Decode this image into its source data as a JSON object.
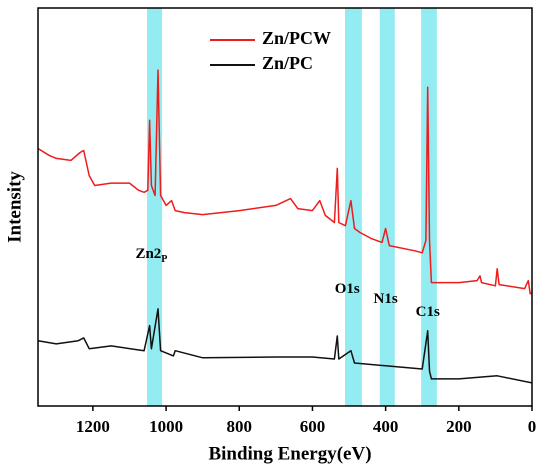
{
  "chart_data": {
    "type": "line",
    "x_label": "Binding Energy(eV)",
    "y_label": "Intensity",
    "xlim": [
      1350,
      0
    ],
    "xticks": [
      1200,
      1000,
      800,
      600,
      400,
      200,
      0
    ],
    "ylim": [
      0,
      100
    ],
    "legend": "upper center",
    "highlight_color": "#7fe9f0",
    "highlights": [
      [
        1052,
        1011
      ],
      [
        511,
        465
      ],
      [
        416,
        375
      ],
      [
        303,
        260
      ]
    ],
    "annotations": [
      {
        "text": "Zn2",
        "sub": "P",
        "x": 1040
      },
      {
        "text": "O1s",
        "x": 505
      },
      {
        "text": "N1s",
        "x": 400
      },
      {
        "text": "C1s",
        "x": 285
      }
    ],
    "series": [
      {
        "name": "Zn/PCW",
        "color": "#ee1c1c",
        "x": [
          1350,
          1320,
          1300,
          1260,
          1235,
          1225,
          1210,
          1195,
          1150,
          1100,
          1075,
          1060,
          1050,
          1045,
          1040,
          1030,
          1022,
          1015,
          1000,
          985,
          975,
          950,
          900,
          800,
          700,
          660,
          640,
          600,
          580,
          565,
          540,
          532,
          528,
          510,
          495,
          485,
          470,
          440,
          410,
          400,
          390,
          320,
          300,
          290,
          285,
          280,
          275,
          250,
          200,
          150,
          142,
          138,
          100,
          95,
          90,
          20,
          10,
          5,
          0
        ],
        "values": [
          64.7,
          63,
          62.2,
          61.7,
          63.7,
          64.2,
          57.9,
          55.4,
          56,
          56,
          54.2,
          53.7,
          54.2,
          71.8,
          55.4,
          52.9,
          84.4,
          52.9,
          50.4,
          51.6,
          49.1,
          48.6,
          48.1,
          49.1,
          50.4,
          52.1,
          49.6,
          49.1,
          51.6,
          47.9,
          46.1,
          59.7,
          46.1,
          45.3,
          51.6,
          44.6,
          43.6,
          42.1,
          41.1,
          44.6,
          40.3,
          39,
          38.5,
          41.6,
          80.1,
          41.6,
          31,
          31,
          31,
          31.5,
          32.7,
          31,
          30.2,
          34.5,
          30.5,
          29.5,
          31.5,
          28.2,
          28.5
        ]
      },
      {
        "name": "Zn/PC",
        "color": "#111111",
        "x": [
          1350,
          1300,
          1240,
          1225,
          1210,
          1150,
          1060,
          1045,
          1040,
          1022,
          1015,
          980,
          975,
          900,
          700,
          600,
          540,
          532,
          528,
          495,
          485,
          400,
          300,
          285,
          280,
          275,
          200,
          95,
          0
        ],
        "values": [
          16.4,
          15.6,
          16.4,
          17.1,
          14.4,
          15.1,
          13.9,
          20.2,
          14.4,
          24.4,
          13.9,
          12.6,
          13.9,
          12.1,
          12.3,
          12.3,
          11.8,
          17.6,
          11.8,
          13.9,
          10.8,
          10.1,
          9.3,
          18.9,
          8.8,
          6.8,
          6.8,
          7.6,
          5.8
        ]
      }
    ]
  }
}
